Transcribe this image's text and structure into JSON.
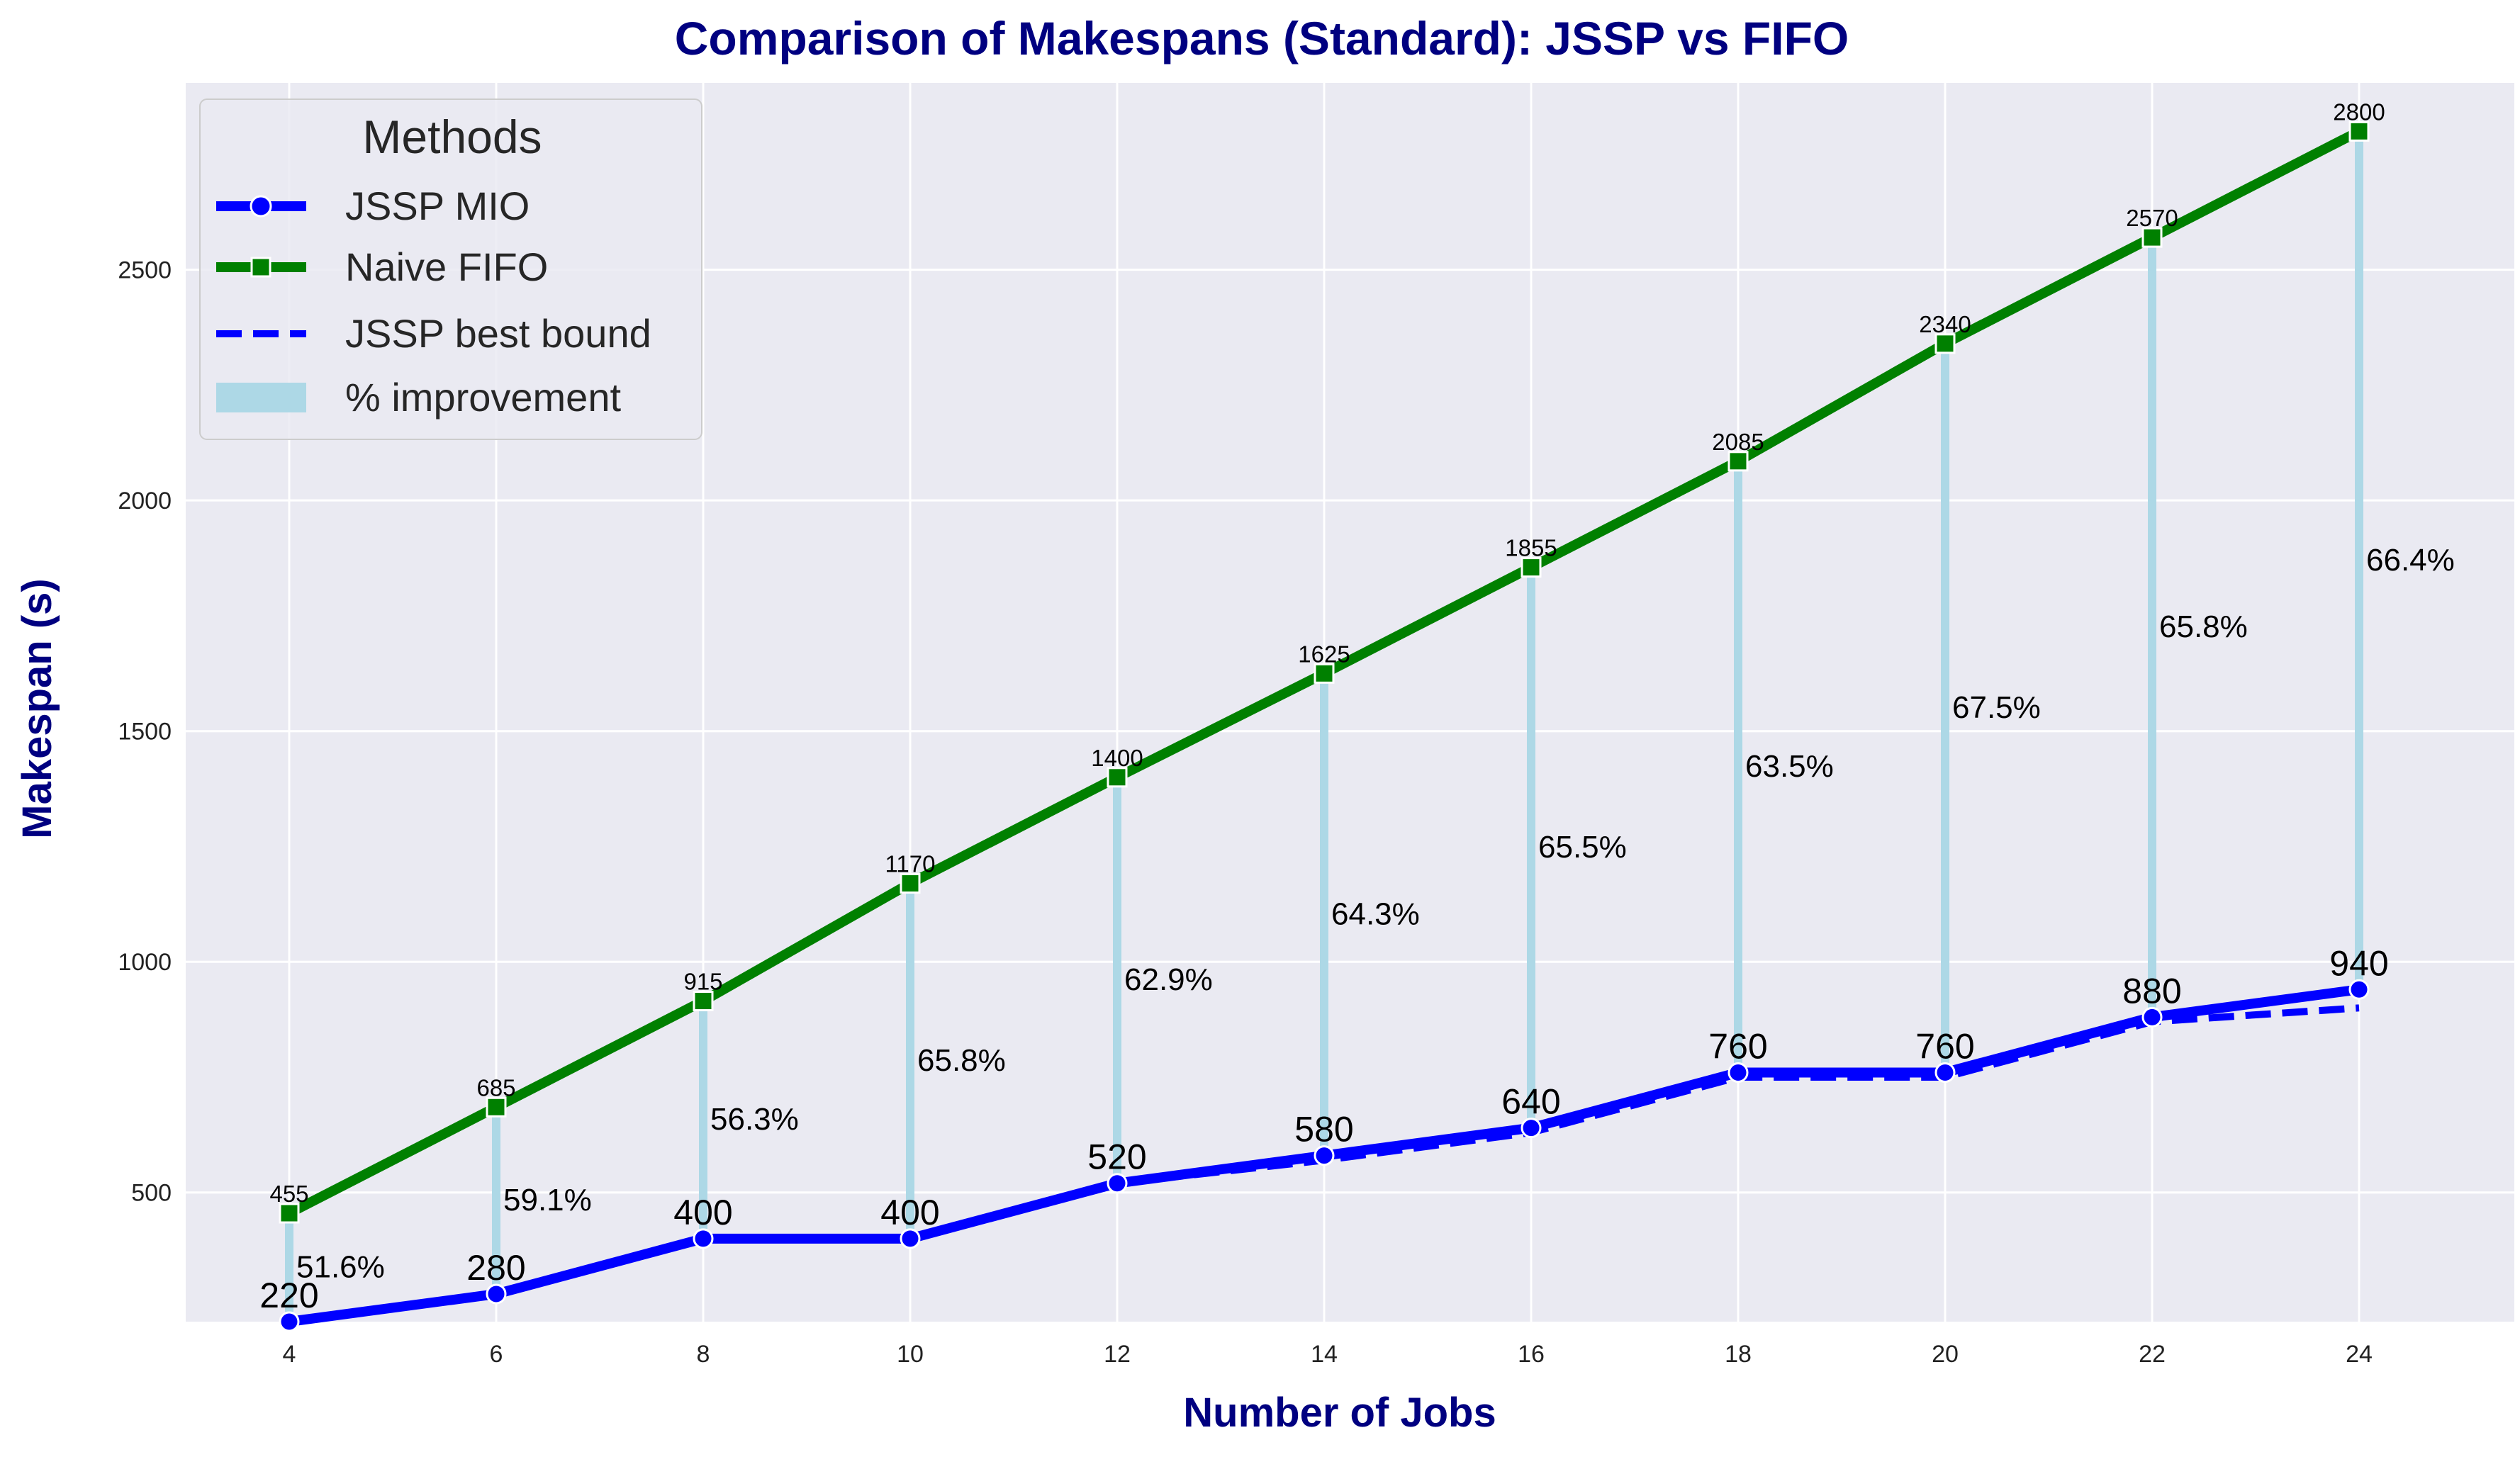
{
  "chart_data": {
    "type": "line",
    "title": "Comparison of Makespans (Standard): JSSP vs FIFO",
    "xlabel": "Number of Jobs",
    "ylabel": "Makespan (s)",
    "x": [
      4,
      6,
      8,
      10,
      12,
      14,
      16,
      18,
      20,
      22,
      24
    ],
    "xlim": [
      3,
      25.5
    ],
    "ylim": [
      220,
      2905
    ],
    "yticks": [
      500,
      1000,
      1500,
      2000,
      2500
    ],
    "grid": true,
    "legend": {
      "title": "Methods",
      "placement": "top-left",
      "entries": [
        "JSSP MIO",
        "Naive FIFO",
        "JSSP best bound",
        "% improvement"
      ]
    },
    "series": [
      {
        "name": "JSSP MIO",
        "style": "solid",
        "marker": "circle",
        "color": "#0000ff",
        "values": [
          220,
          280,
          400,
          400,
          520,
          580,
          640,
          760,
          760,
          880,
          940
        ]
      },
      {
        "name": "Naive FIFO",
        "style": "solid",
        "marker": "square",
        "color": "#008000",
        "values": [
          455,
          685,
          915,
          1170,
          1400,
          1625,
          1855,
          2085,
          2340,
          2570,
          2800
        ]
      },
      {
        "name": "JSSP best bound",
        "style": "dashed",
        "marker": "none",
        "color": "#0000ff",
        "values": [
          220,
          280,
          400,
          400,
          520,
          570,
          630,
          750,
          750,
          870,
          900
        ]
      }
    ],
    "improvement": {
      "name": "% improvement",
      "color": "#add8e6",
      "labels": [
        "51.6%",
        "59.1%",
        "56.3%",
        "65.8%",
        "62.9%",
        "64.3%",
        "65.5%",
        "63.5%",
        "67.5%",
        "65.8%",
        "66.4%"
      ]
    },
    "colors": {
      "background": "#eaeaf2",
      "grid": "#ffffff",
      "title": "#000080"
    }
  }
}
